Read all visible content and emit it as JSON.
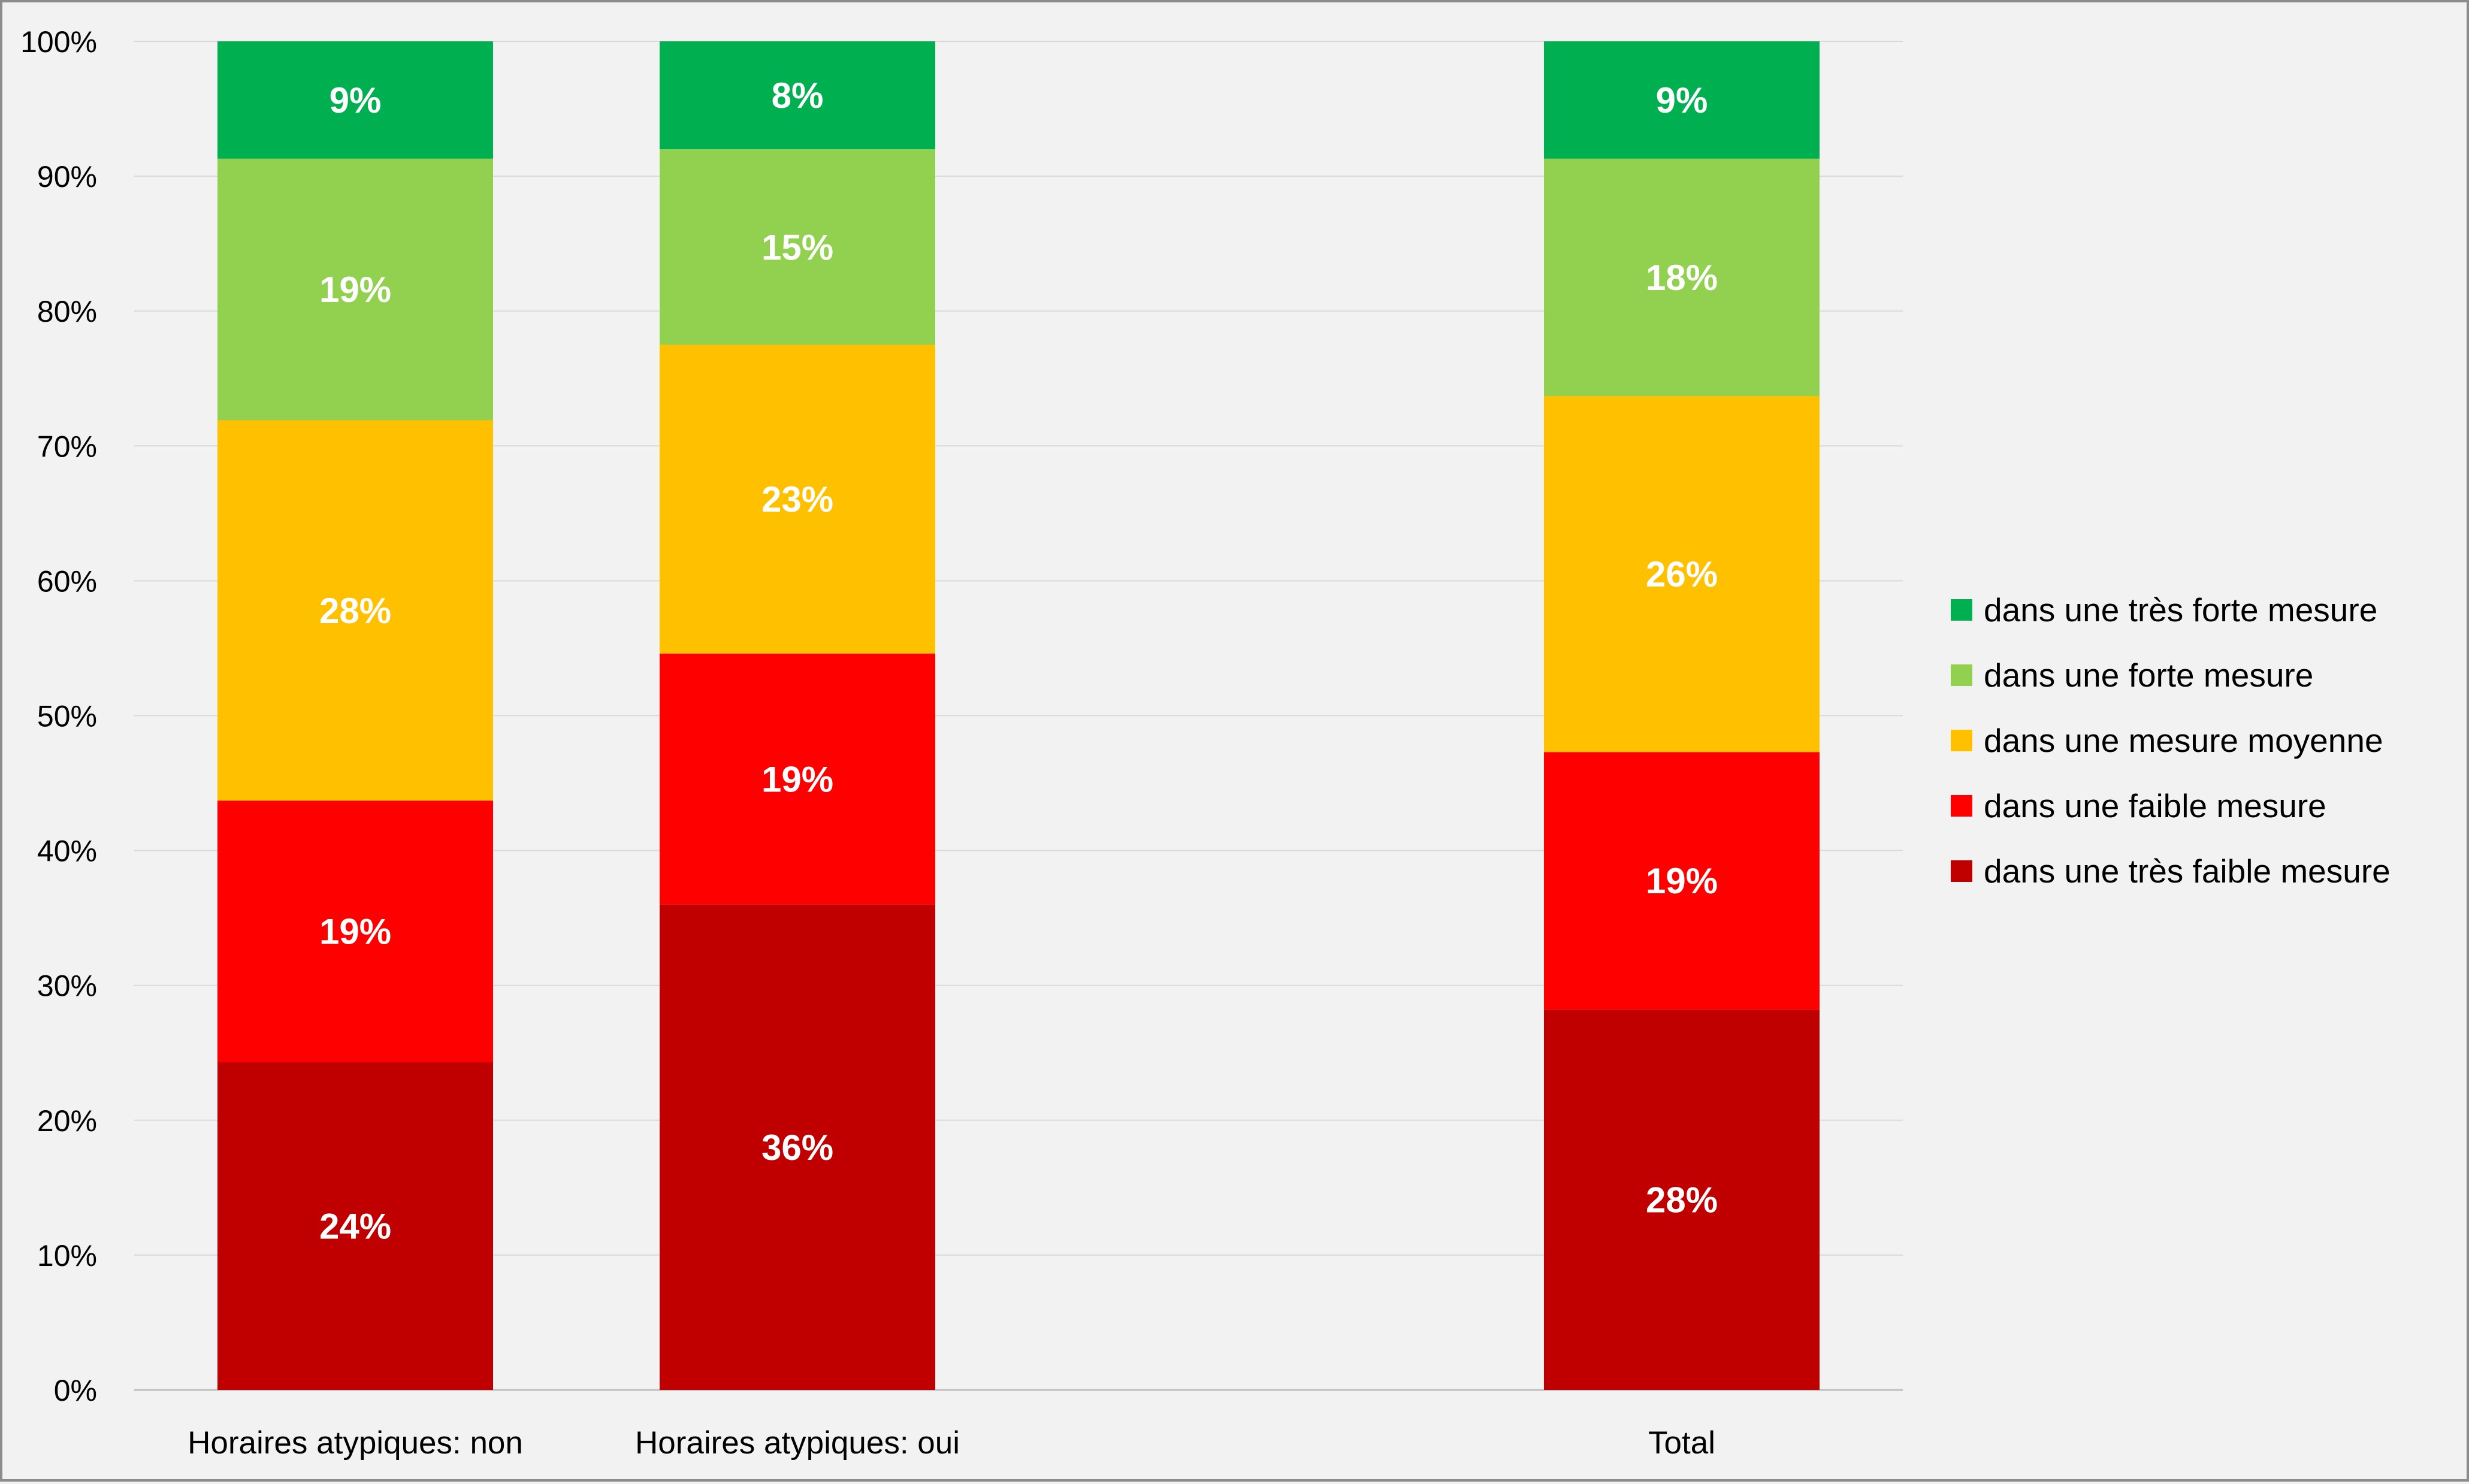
{
  "chart_data": {
    "type": "bar",
    "stacked": true,
    "normalized_100": true,
    "categories": [
      "Horaires atypiques: non",
      "Horaires atypiques: oui",
      "",
      "Total"
    ],
    "series": [
      {
        "name": "dans une très faible mesure",
        "color": "#c00000",
        "values": [
          24.3,
          36.0,
          null,
          28.2
        ],
        "labels": [
          "24%",
          "36%",
          "",
          "28%"
        ]
      },
      {
        "name": "dans une faible mesure",
        "color": "#ff0000",
        "values": [
          19.4,
          18.6,
          null,
          19.1
        ],
        "labels": [
          "19%",
          "19%",
          "",
          "19%"
        ]
      },
      {
        "name": "dans une mesure moyenne",
        "color": "#ffc000",
        "values": [
          28.2,
          22.9,
          null,
          26.4
        ],
        "labels": [
          "28%",
          "23%",
          "",
          "26%"
        ]
      },
      {
        "name": "dans une forte mesure",
        "color": "#92d050",
        "values": [
          19.4,
          14.5,
          null,
          17.6
        ],
        "labels": [
          "19%",
          "15%",
          "",
          "18%"
        ]
      },
      {
        "name": "dans une très forte mesure",
        "color": "#00b050",
        "values": [
          8.7,
          8.0,
          null,
          8.7
        ],
        "labels": [
          "9%",
          "8%",
          "",
          "9%"
        ]
      }
    ],
    "legend_order": [
      "dans une très forte mesure",
      "dans une forte mesure",
      "dans une mesure moyenne",
      "dans une faible mesure",
      "dans une très faible mesure"
    ],
    "ylim": [
      0,
      100
    ],
    "yticks": [
      0,
      10,
      20,
      30,
      40,
      50,
      60,
      70,
      80,
      90,
      100
    ],
    "ytick_labels": [
      "0%",
      "10%",
      "20%",
      "30%",
      "40%",
      "50%",
      "60%",
      "70%",
      "80%",
      "90%",
      "100%"
    ],
    "title": "",
    "xlabel": "",
    "ylabel": "",
    "grid": true,
    "legend_position": "right"
  }
}
